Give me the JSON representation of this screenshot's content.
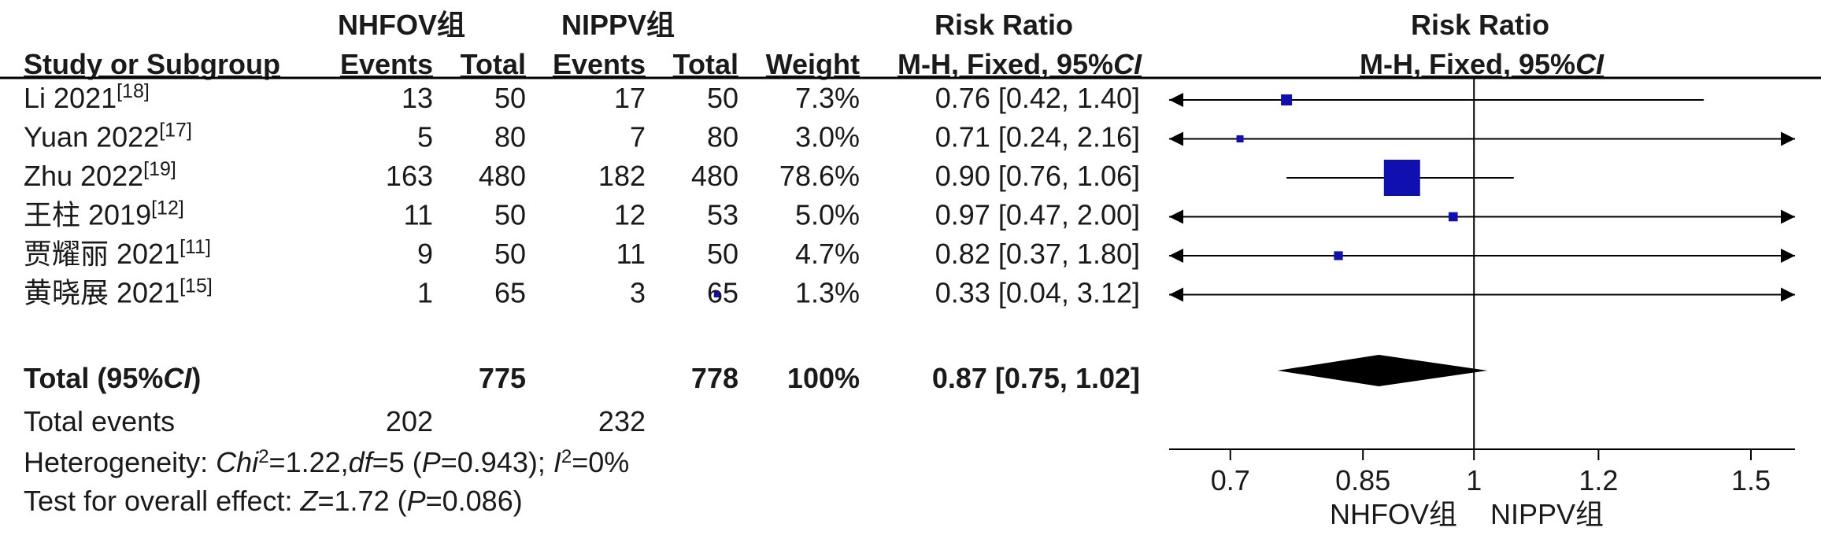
{
  "groups": {
    "experimental": "NHFOV组",
    "control": "NIPPV组"
  },
  "headers": {
    "study": "Study or Subgroup",
    "events": "Events",
    "total": "Total",
    "weight": "Weight",
    "rr_title": "Risk Ratio",
    "rr_method": "M-H, Fixed, 95%",
    "ci": "CI"
  },
  "studies": [
    {
      "name": "Li 2021",
      "ref": "[18]",
      "e_events": "13",
      "e_total": "50",
      "c_events": "17",
      "c_total": "50",
      "weight": "7.3%",
      "ci_text": "0.76 [0.42, 1.40]",
      "rr": 0.76,
      "lo": 0.42,
      "hi": 1.4,
      "w": 7.3
    },
    {
      "name": "Yuan 2022",
      "ref": "[17]",
      "e_events": "5",
      "e_total": "80",
      "c_events": "7",
      "c_total": "80",
      "weight": "3.0%",
      "ci_text": "0.71 [0.24, 2.16]",
      "rr": 0.71,
      "lo": 0.24,
      "hi": 2.16,
      "w": 3.0
    },
    {
      "name": "Zhu 2022",
      "ref": "[19]",
      "e_events": "163",
      "e_total": "480",
      "c_events": "182",
      "c_total": "480",
      "weight": "78.6%",
      "ci_text": "0.90 [0.76, 1.06]",
      "rr": 0.9,
      "lo": 0.76,
      "hi": 1.06,
      "w": 78.6
    },
    {
      "name": "王柱 2019",
      "ref": "[12]",
      "e_events": "11",
      "e_total": "50",
      "c_events": "12",
      "c_total": "53",
      "weight": "5.0%",
      "ci_text": "0.97 [0.47, 2.00]",
      "rr": 0.97,
      "lo": 0.47,
      "hi": 2.0,
      "w": 5.0
    },
    {
      "name": "贾耀丽 2021",
      "ref": "[11]",
      "e_events": "9",
      "e_total": "50",
      "c_events": "11",
      "c_total": "50",
      "weight": "4.7%",
      "ci_text": "0.82 [0.37, 1.80]",
      "rr": 0.82,
      "lo": 0.37,
      "hi": 1.8,
      "w": 4.7
    },
    {
      "name": "黄晓展 2021",
      "ref": "[15]",
      "e_events": "1",
      "e_total": "65",
      "c_events": "3",
      "c_total": "65",
      "weight": "1.3%",
      "ci_text": "0.33 [0.04, 3.12]",
      "rr": 0.33,
      "lo": 0.04,
      "hi": 3.12,
      "w": 1.3
    }
  ],
  "total": {
    "label_prefix": "Total (95%",
    "label_ci": "CI",
    "label_suffix": ")",
    "e_total": "775",
    "c_total": "778",
    "weight": "100%",
    "ci_text": "0.87 [0.75, 1.02]",
    "rr": 0.87,
    "lo": 0.75,
    "hi": 1.02
  },
  "total_events": {
    "label": "Total events",
    "e_events": "202",
    "c_events": "232"
  },
  "heterogeneity": {
    "label": "Heterogeneity: ",
    "chi_sym": "Chi",
    "chi_exp": "2",
    "chi_val": "=1.22,",
    "df_sym": "df",
    "df_val": "=5 (",
    "p_sym": "P",
    "p_val": "=0.943); ",
    "i_sym": "I",
    "i_exp": "2",
    "i_val": "=0%"
  },
  "overall_effect": {
    "label": "Test for overall effect: ",
    "z_sym": "Z",
    "z_val": "=1.72 (",
    "p_sym": "P",
    "p_val": "=0.086)"
  },
  "colors": {
    "marker": "#1010b0",
    "diamond": "#000000",
    "line": "#000000"
  },
  "chart_data": {
    "type": "forest",
    "scale": "log",
    "xlim": [
      0.64,
      1.6
    ],
    "ticks": [
      0.7,
      0.85,
      1,
      1.2,
      1.5
    ],
    "tick_labels": [
      "0.7",
      "0.85",
      "1",
      "1.2",
      "1.5"
    ],
    "null_value": 1,
    "favours_left": "NHFOV组",
    "favours_right": "NIPPV组"
  }
}
